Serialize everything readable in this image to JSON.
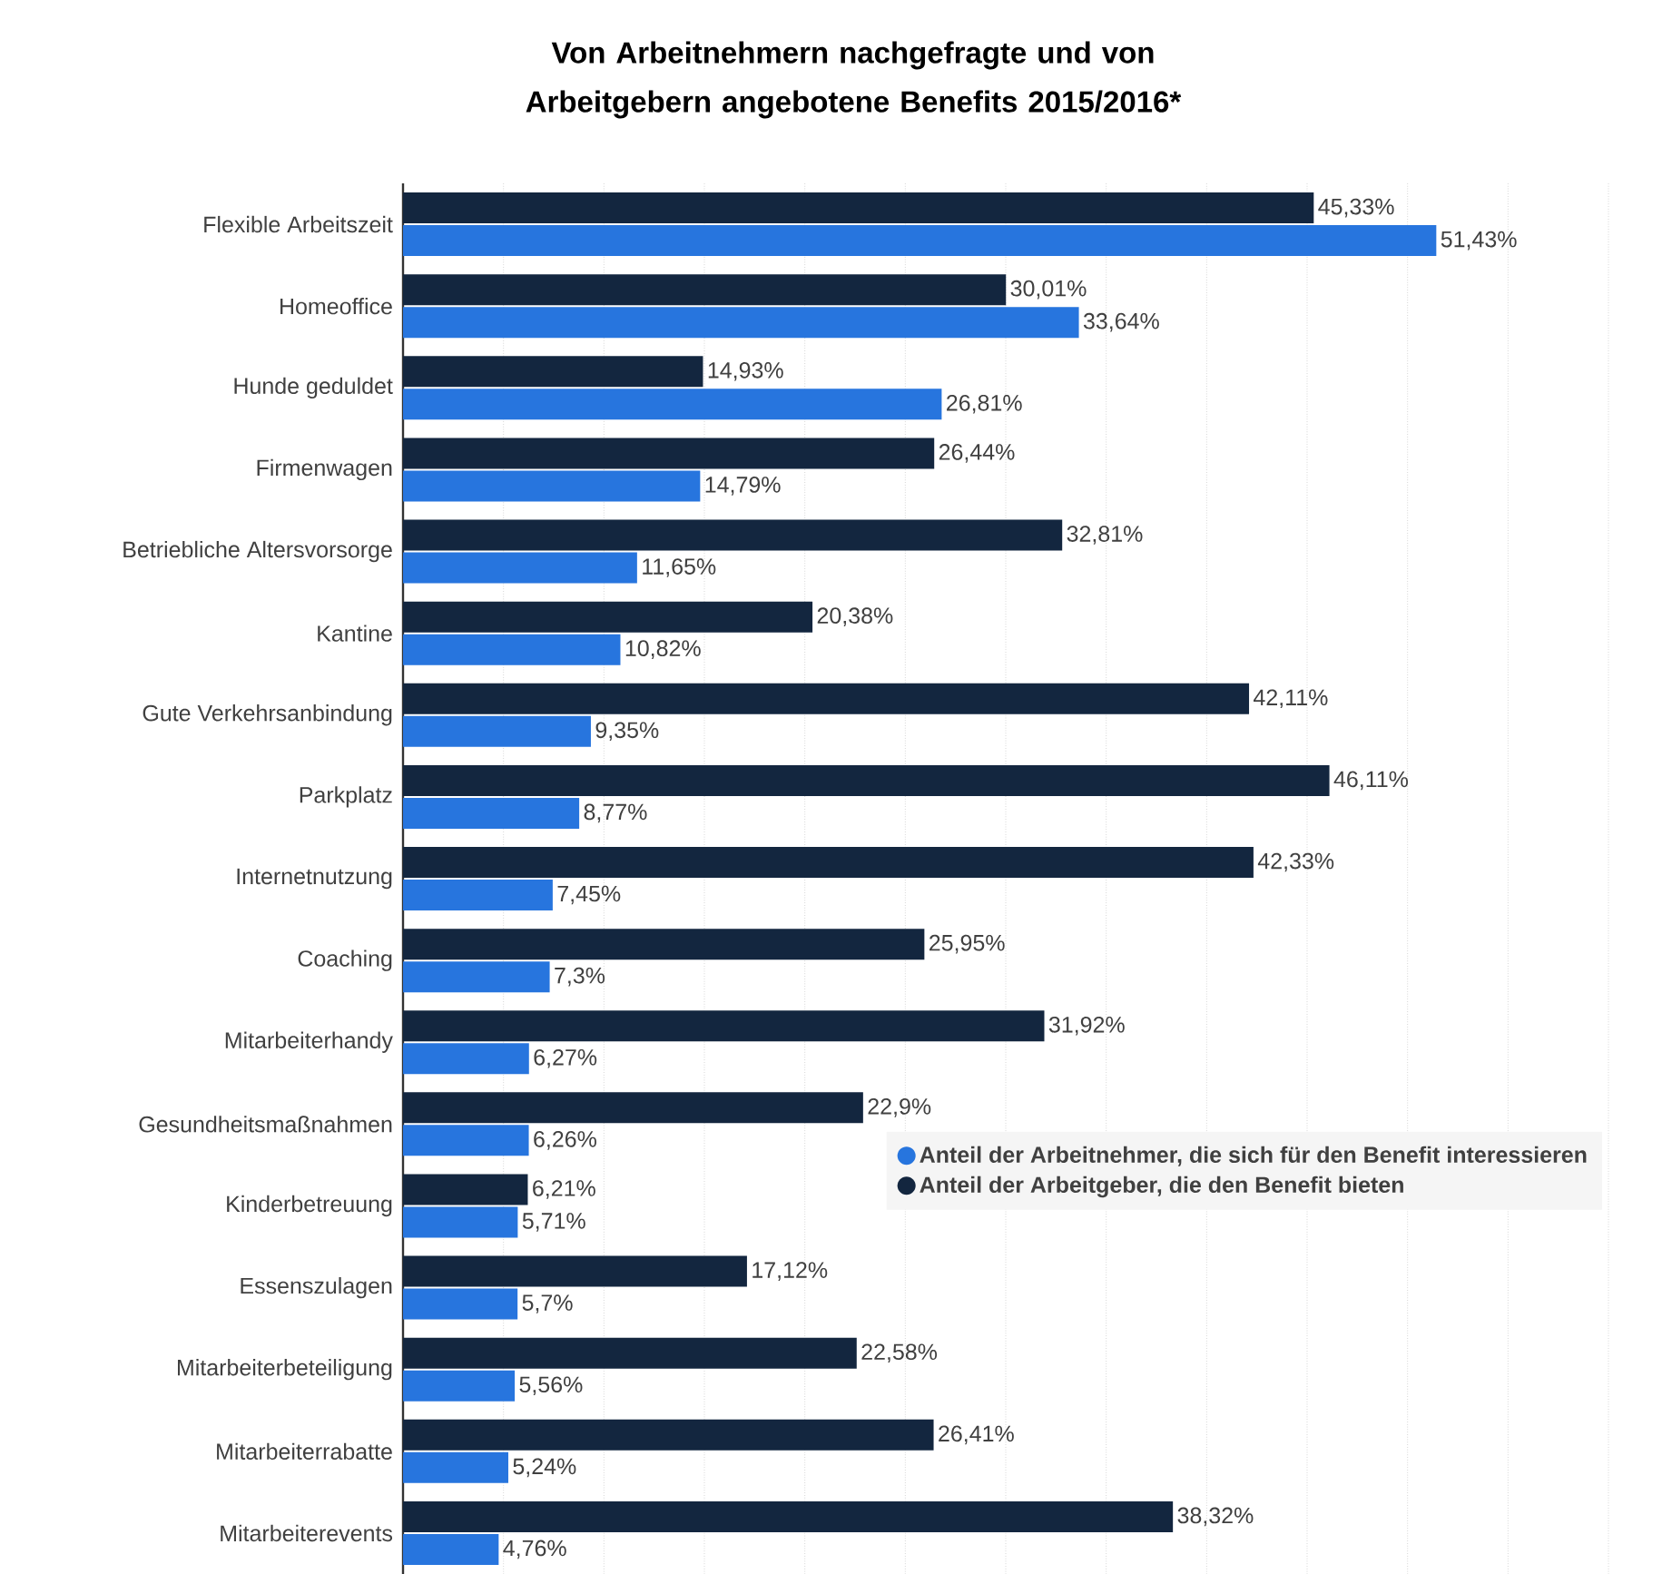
{
  "chart_data": {
    "type": "bar",
    "orientation": "horizontal",
    "title": "Von Arbeitnehmern nachgefragte und von Arbeitgebern angebotene Benefits 2015/2016*",
    "categories": [
      "Flexible Arbeitszeit",
      "Homeoffice",
      "Hunde geduldet",
      "Firmenwagen",
      "Betriebliche Altersvorsorge",
      "Kantine",
      "Gute Verkehrsanbindung",
      "Parkplatz",
      "Internetnutzung",
      "Coaching",
      "Mitarbeiterhandy",
      "Gesundheitsmaßnahmen",
      "Kinderbetreuung",
      "Essenszulagen",
      "Mitarbeiterbeteiligung",
      "Mitarbeiterrabatte",
      "Mitarbeiterevents"
    ],
    "series": [
      {
        "name": "Anteil der Arbeitnehmer, die sich für den Benefit interessieren",
        "color": "#2775de",
        "values": [
          51.43,
          33.64,
          26.81,
          14.79,
          11.65,
          10.82,
          9.35,
          8.77,
          7.45,
          7.3,
          6.27,
          6.26,
          5.71,
          5.7,
          5.56,
          5.24,
          4.76
        ],
        "value_labels": [
          "51,43%",
          "33,64%",
          "26,81%",
          "14,79%",
          "11,65%",
          "10,82%",
          "9,35%",
          "8,77%",
          "7,45%",
          "7,3%",
          "6,27%",
          "6,26%",
          "5,71%",
          "5,7%",
          "5,56%",
          "5,24%",
          "4,76%"
        ]
      },
      {
        "name": "Anteil der Arbeitgeber, die den Benefit bieten",
        "color": "#13263f",
        "values": [
          45.33,
          30.01,
          14.93,
          26.44,
          32.81,
          20.38,
          42.11,
          46.11,
          42.33,
          25.95,
          31.92,
          22.9,
          6.21,
          17.12,
          22.58,
          26.41,
          38.32
        ],
        "value_labels": [
          "45,33%",
          "30,01%",
          "14,93%",
          "26,44%",
          "32,81%",
          "20,38%",
          "42,11%",
          "46,11%",
          "42,33%",
          "25,95%",
          "31,92%",
          "22,9%",
          "6,21%",
          "17,12%",
          "22,58%",
          "26,41%",
          "38,32%"
        ]
      }
    ],
    "xlim": [
      0,
      60
    ],
    "xticks": [
      {
        "value": 0,
        "label": null
      },
      {
        "value": 5,
        "label": null
      },
      {
        "value": 10,
        "label": null
      },
      {
        "value": 15,
        "label": null
      },
      {
        "value": 20,
        "label": null
      },
      {
        "value": 25,
        "label": null
      },
      {
        "value": 30,
        "label": null
      },
      {
        "value": 35,
        "label": null
      },
      {
        "value": 40,
        "label": null
      },
      {
        "value": 45,
        "label": null
      },
      {
        "value": 50,
        "label": null
      },
      {
        "value": 55,
        "label": null
      },
      {
        "value": 60,
        "label": null
      }
    ],
    "grid": "x",
    "legend": "right",
    "tick_labels": "y"
  }
}
